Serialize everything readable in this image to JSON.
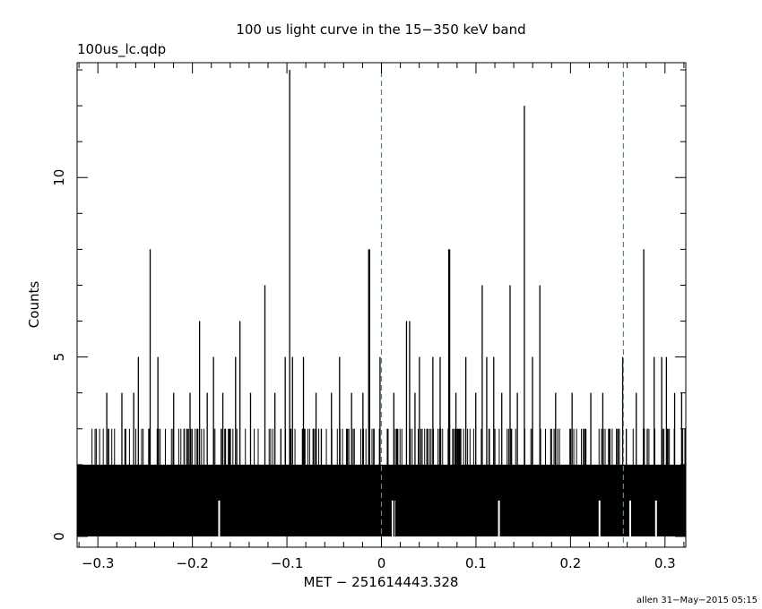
{
  "chart_data": {
    "type": "bar",
    "title": "100 us light curve in the 15−350 keV band",
    "file_label": "100us_lc.qdp",
    "xlabel": "MET − 251614443.328",
    "ylabel": "Counts",
    "footer": "allen 31−May−2015 05:15",
    "xlim": [
      -0.322,
      0.322
    ],
    "ylim": [
      -0.3,
      13.2
    ],
    "x_ticks": [
      {
        "value": -0.3,
        "label": "−0.3"
      },
      {
        "value": -0.2,
        "label": "−0.2"
      },
      {
        "value": -0.1,
        "label": "−0.1"
      },
      {
        "value": 0,
        "label": "0"
      },
      {
        "value": 0.1,
        "label": "0.1"
      },
      {
        "value": 0.2,
        "label": "0.2"
      },
      {
        "value": 0.3,
        "label": "0.3"
      }
    ],
    "y_ticks": [
      {
        "value": 0,
        "label": "0"
      },
      {
        "value": 5,
        "label": "5"
      },
      {
        "value": 10,
        "label": "10"
      }
    ],
    "bin_width": 0.0001,
    "baseline_level": 2,
    "vertical_markers": [
      0,
      0.256
    ],
    "spikes": [
      {
        "x": -0.2447,
        "y": 8
      },
      {
        "x": -0.1924,
        "y": 6
      },
      {
        "x": -0.1497,
        "y": 6
      },
      {
        "x": -0.1233,
        "y": 7
      },
      {
        "x": -0.0971,
        "y": 13
      },
      {
        "x": -0.0135,
        "y": 8
      },
      {
        "x": -0.0125,
        "y": 8
      },
      {
        "x": 0.0712,
        "y": 8
      },
      {
        "x": 0.0722,
        "y": 8
      },
      {
        "x": 0.1066,
        "y": 7
      },
      {
        "x": 0.1361,
        "y": 7
      },
      {
        "x": 0.1512,
        "y": 12
      },
      {
        "x": 0.1676,
        "y": 7
      },
      {
        "x": 0.2775,
        "y": 8
      },
      {
        "x": 0.0265,
        "y": 6
      },
      {
        "x": 0.0298,
        "y": 6
      },
      {
        "x": -0.2572,
        "y": 5
      },
      {
        "x": -0.2365,
        "y": 5
      },
      {
        "x": -0.1777,
        "y": 5
      },
      {
        "x": -0.1543,
        "y": 5
      },
      {
        "x": -0.1018,
        "y": 5
      },
      {
        "x": -0.0941,
        "y": 5
      },
      {
        "x": -0.0825,
        "y": 5
      },
      {
        "x": -0.0443,
        "y": 5
      },
      {
        "x": -0.0015,
        "y": 5
      },
      {
        "x": 0.0402,
        "y": 5
      },
      {
        "x": 0.0544,
        "y": 5
      },
      {
        "x": 0.0621,
        "y": 5
      },
      {
        "x": 0.0893,
        "y": 5
      },
      {
        "x": 0.1114,
        "y": 5
      },
      {
        "x": 0.1188,
        "y": 5
      },
      {
        "x": 0.1598,
        "y": 5
      },
      {
        "x": 0.2552,
        "y": 5
      },
      {
        "x": 0.2885,
        "y": 5
      },
      {
        "x": 0.2965,
        "y": 5
      },
      {
        "x": 0.3015,
        "y": 5
      },
      {
        "x": -0.2906,
        "y": 4
      },
      {
        "x": -0.2746,
        "y": 4
      },
      {
        "x": -0.2621,
        "y": 4
      },
      {
        "x": -0.2198,
        "y": 4
      },
      {
        "x": -0.2025,
        "y": 4
      },
      {
        "x": -0.1843,
        "y": 4
      },
      {
        "x": -0.1678,
        "y": 4
      },
      {
        "x": -0.1385,
        "y": 4
      },
      {
        "x": -0.1127,
        "y": 4
      },
      {
        "x": -0.0692,
        "y": 4
      },
      {
        "x": -0.0529,
        "y": 4
      },
      {
        "x": -0.0316,
        "y": 4
      },
      {
        "x": -0.0196,
        "y": 4
      },
      {
        "x": 0.0131,
        "y": 4
      },
      {
        "x": 0.0355,
        "y": 4
      },
      {
        "x": 0.0788,
        "y": 4
      },
      {
        "x": 0.0998,
        "y": 4
      },
      {
        "x": 0.1273,
        "y": 4
      },
      {
        "x": 0.1438,
        "y": 4
      },
      {
        "x": 0.1843,
        "y": 4
      },
      {
        "x": 0.2017,
        "y": 4
      },
      {
        "x": 0.2215,
        "y": 4
      },
      {
        "x": 0.2342,
        "y": 4
      },
      {
        "x": 0.2696,
        "y": 4
      },
      {
        "x": 0.3102,
        "y": 4
      },
      {
        "x": 0.3176,
        "y": 4
      }
    ],
    "gaps": [
      -0.1717,
      0.0118,
      0.0135,
      0.1243,
      0.2307,
      0.2632,
      0.2905
    ]
  },
  "colors": {
    "axes": "#000000",
    "data": "#000000",
    "markers": "#1f8fd6",
    "background": "#ffffff"
  }
}
